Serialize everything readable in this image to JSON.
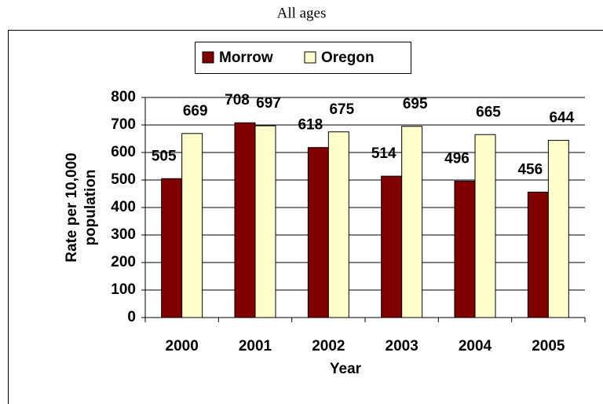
{
  "chart_data": {
    "type": "bar",
    "title": "All ages",
    "categories": [
      "2000",
      "2001",
      "2002",
      "2003",
      "2004",
      "2005"
    ],
    "series": [
      {
        "name": "Morrow",
        "color": "#800000",
        "values": [
          505,
          708,
          618,
          514,
          496,
          456
        ]
      },
      {
        "name": "Oregon",
        "color": "#ffffcc",
        "values": [
          669,
          697,
          675,
          695,
          665,
          644
        ]
      }
    ],
    "ylim": [
      0,
      800
    ],
    "yticks": [
      0,
      100,
      200,
      300,
      400,
      500,
      600,
      700,
      800
    ],
    "grid": true,
    "xlabel": "Year",
    "ylabel": [
      "Rate per 10,000",
      "population"
    ],
    "legend": "top"
  }
}
